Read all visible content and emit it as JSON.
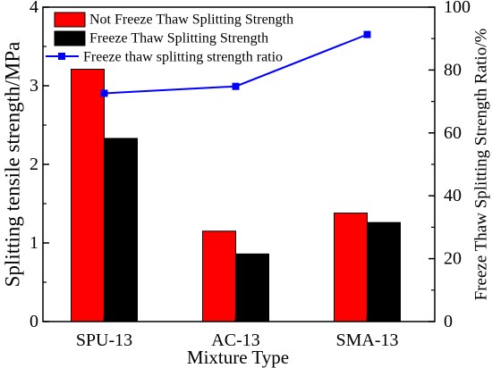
{
  "chart_data": {
    "type": "bar",
    "categories": [
      "SPU-13",
      "AC-13",
      "SMA-13"
    ],
    "series": [
      {
        "name": "Not Freeze Thaw Splitting Strength",
        "type": "bar",
        "axis": "left",
        "color": "#ff0000",
        "values": [
          3.21,
          1.15,
          1.38
        ]
      },
      {
        "name": "Freeze Thaw Splitting Strength",
        "type": "bar",
        "axis": "left",
        "color": "#000000",
        "values": [
          2.33,
          0.86,
          1.26
        ]
      },
      {
        "name": "Freeze thaw splitting strength ratio",
        "type": "line",
        "axis": "right",
        "marker": "square",
        "color": "#0000ff",
        "values": [
          72.6,
          74.8,
          91.3
        ]
      }
    ],
    "xlabel": "Mixture Type",
    "ylabel": "Splitting tensile strength/MPa",
    "y2label": "Freeze Thaw Splitting Strength Ratio/%",
    "ylim": [
      0,
      4
    ],
    "y2lim": [
      0,
      100
    ],
    "yticks": [
      0,
      1,
      2,
      3,
      4
    ],
    "y2ticks": [
      0,
      20,
      40,
      60,
      80,
      100
    ],
    "grid": false,
    "legend": "top-left"
  }
}
